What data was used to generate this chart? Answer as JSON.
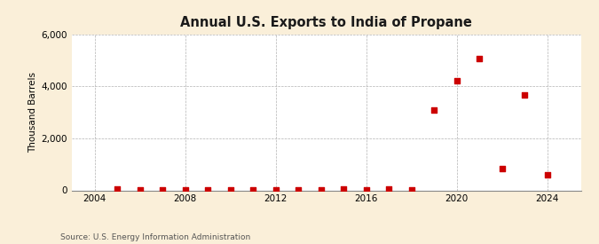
{
  "title": "Annual U.S. Exports to India of Propane",
  "ylabel": "Thousand Barrels",
  "source": "Source: U.S. Energy Information Administration",
  "background_color": "#faefd9",
  "plot_background_color": "#ffffff",
  "marker_color": "#cc0000",
  "marker_size": 16,
  "xlim": [
    2003.0,
    2025.5
  ],
  "ylim": [
    0,
    6000
  ],
  "yticks": [
    0,
    2000,
    4000,
    6000
  ],
  "xticks": [
    2004,
    2008,
    2012,
    2016,
    2020,
    2024
  ],
  "years": [
    2005,
    2006,
    2007,
    2008,
    2009,
    2010,
    2011,
    2012,
    2013,
    2014,
    2015,
    2016,
    2017,
    2018,
    2019,
    2020,
    2021,
    2022,
    2023,
    2024
  ],
  "values": [
    60,
    10,
    20,
    30,
    20,
    20,
    30,
    20,
    20,
    30,
    40,
    30,
    40,
    30,
    3100,
    4200,
    5050,
    850,
    3650,
    600
  ]
}
